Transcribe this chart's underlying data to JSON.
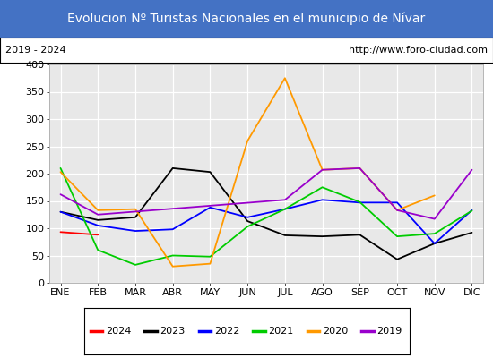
{
  "title": "Evolucion Nº Turistas Nacionales en el municipio de Nívar",
  "subtitle_left": "2019 - 2024",
  "subtitle_right": "http://www.foro-ciudad.com",
  "title_bg": "#4472c4",
  "title_color": "white",
  "months": [
    "ENE",
    "FEB",
    "MAR",
    "ABR",
    "MAY",
    "JUN",
    "JUL",
    "AGO",
    "SEP",
    "OCT",
    "NOV",
    "DIC"
  ],
  "ylim": [
    0,
    400
  ],
  "yticks": [
    0,
    50,
    100,
    150,
    200,
    250,
    300,
    350,
    400
  ],
  "series": {
    "2024": {
      "color": "#ff0000",
      "values": [
        93,
        88,
        null,
        null,
        null,
        null,
        null,
        null,
        null,
        null,
        null,
        null
      ]
    },
    "2023": {
      "color": "#000000",
      "values": [
        130,
        115,
        120,
        210,
        203,
        113,
        87,
        85,
        88,
        43,
        72,
        92
      ]
    },
    "2022": {
      "color": "#0000ff",
      "values": [
        130,
        105,
        95,
        98,
        138,
        120,
        135,
        152,
        147,
        147,
        72,
        133
      ]
    },
    "2021": {
      "color": "#00cc00",
      "values": [
        210,
        60,
        33,
        50,
        48,
        103,
        135,
        175,
        148,
        85,
        90,
        132
      ]
    },
    "2020": {
      "color": "#ff9900",
      "values": [
        203,
        133,
        135,
        30,
        35,
        260,
        375,
        207,
        210,
        133,
        160,
        null
      ]
    },
    "2019": {
      "color": "#9900cc",
      "values": [
        162,
        125,
        null,
        null,
        null,
        null,
        152,
        207,
        210,
        133,
        117,
        207
      ]
    }
  },
  "legend_items": [
    [
      "2024",
      "#ff0000"
    ],
    [
      "2023",
      "#000000"
    ],
    [
      "2022",
      "#0000ff"
    ],
    [
      "2021",
      "#00cc00"
    ],
    [
      "2020",
      "#ff9900"
    ],
    [
      "2019",
      "#9900cc"
    ]
  ],
  "chart_bg": "#e8e8e8",
  "grid_color": "#ffffff",
  "title_fontsize": 10,
  "tick_fontsize": 8
}
